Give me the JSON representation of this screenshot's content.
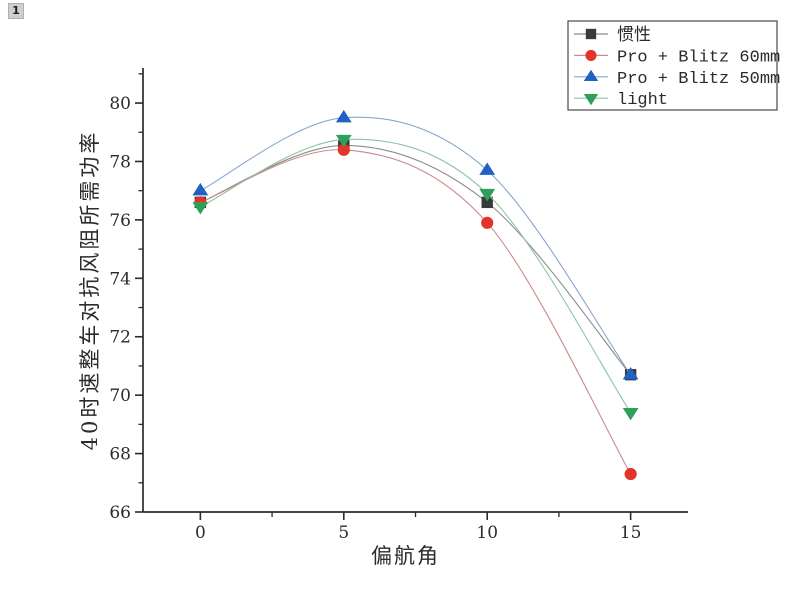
{
  "badge": {
    "label": "1"
  },
  "chart_data": {
    "type": "line",
    "x": [
      0,
      5,
      10,
      15
    ],
    "series": [
      {
        "name": "惯性",
        "marker": "square",
        "marker_color": "#3a3a3a",
        "line_color": "#8a8a8a",
        "values": [
          76.6,
          78.55,
          76.6,
          70.7
        ]
      },
      {
        "name": "Pro + Blitz 60mm",
        "marker": "circle",
        "marker_color": "#e3342b",
        "line_color": "#cc8a8a",
        "values": [
          76.6,
          78.4,
          75.9,
          67.3
        ]
      },
      {
        "name": "Pro + Blitz 50mm",
        "marker": "triangle-up",
        "marker_color": "#1f62c4",
        "line_color": "#8aa6cc",
        "values": [
          77.0,
          79.5,
          77.7,
          70.7
        ]
      },
      {
        "name": "light",
        "marker": "triangle-down",
        "marker_color": "#2da05a",
        "line_color": "#8cc4a6",
        "values": [
          76.45,
          78.75,
          76.9,
          69.4
        ]
      }
    ],
    "title": "",
    "xlabel": "偏航角",
    "ylabel": "40时速整车对抗风阻所需功率",
    "xlim": [
      -2,
      17
    ],
    "ylim": [
      66,
      81.2
    ],
    "x_major_ticks": [
      0,
      5,
      10,
      15
    ],
    "x_minor_ticks": [
      2.5,
      7.5,
      12.5
    ],
    "y_major_ticks": [
      66,
      68,
      70,
      72,
      74,
      76,
      78,
      80
    ],
    "y_minor_ticks": [
      67,
      69,
      71,
      73,
      75,
      77,
      79,
      81
    ],
    "grid": false,
    "legend": {
      "position": "top-right",
      "entries": [
        "惯性",
        "Pro + Blitz 60mm",
        "Pro + Blitz 50mm",
        "light"
      ]
    },
    "axis_color": "#2b2b2b"
  }
}
